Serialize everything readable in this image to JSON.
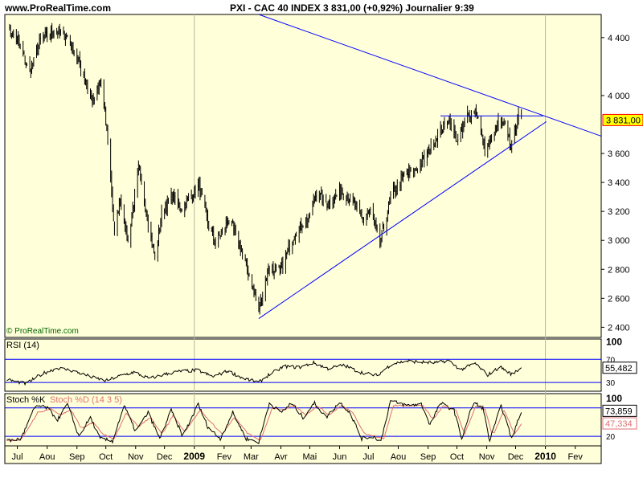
{
  "header": {
    "site": "www.ProRealTime.com",
    "title": "PXI - CAC 40 INDEX    3 831,00 (+0,92%)    Journalier  9:39"
  },
  "watermark": "© ProRealTime.com",
  "colors": {
    "panel_bg": "#ffffd9",
    "candle": "#000000",
    "trendline": "#0000ff",
    "rsi_line": "#000000",
    "stoch_k": "#000000",
    "stoch_d": "#e07070",
    "grid": "#b8b8a0",
    "price_tag_bg": "#ffff00",
    "price_tag_border": "#ff0000"
  },
  "chart_data": [
    {
      "type": "candlestick",
      "name": "CAC 40 INDEX",
      "interval": "Journalier",
      "last_price_label": "3 831,00",
      "yticks": [
        "4 400",
        "4 000",
        "3 600",
        "3 400",
        "3 200",
        "3 000",
        "2 800",
        "2 600",
        "2 400"
      ],
      "ytick_values": [
        4400,
        4000,
        3600,
        3400,
        3200,
        3000,
        2800,
        2600,
        2400
      ],
      "ylim": [
        2330,
        4560
      ],
      "x_months": [
        "Jul",
        "Aou",
        "Sep",
        "Oct",
        "Nov",
        "Dec",
        "2009",
        "Fev",
        "Mar",
        "Avr",
        "Mai",
        "Jun",
        "Jul",
        "Aou",
        "Sep",
        "Oct",
        "Nov",
        "Dec",
        "2010",
        "Fev"
      ],
      "x_month_starts": [
        "2008-07-01",
        "2008-08-01",
        "2008-09-01",
        "2008-10-01",
        "2008-11-01",
        "2008-12-01",
        "2009-01-01",
        "2009-02-01",
        "2009-03-01",
        "2009-04-01",
        "2009-05-01",
        "2009-06-01",
        "2009-07-01",
        "2009-08-01",
        "2009-09-01",
        "2009-10-01",
        "2009-11-01",
        "2009-12-01",
        "2010-01-01",
        "2010-02-01"
      ],
      "xlim": [
        "2008-06-18",
        "2010-02-28"
      ],
      "price_path": [
        [
          "2008-06-20",
          4480
        ],
        [
          "2008-07-03",
          4360
        ],
        [
          "2008-07-14",
          4150
        ],
        [
          "2008-07-25",
          4380
        ],
        [
          "2008-08-08",
          4450
        ],
        [
          "2008-08-22",
          4410
        ],
        [
          "2008-09-05",
          4200
        ],
        [
          "2008-09-18",
          3950
        ],
        [
          "2008-09-26",
          4100
        ],
        [
          "2008-10-03",
          3700
        ],
        [
          "2008-10-10",
          3050
        ],
        [
          "2008-10-16",
          3300
        ],
        [
          "2008-10-24",
          2980
        ],
        [
          "2008-11-04",
          3500
        ],
        [
          "2008-11-12",
          3200
        ],
        [
          "2008-11-21",
          2880
        ],
        [
          "2008-11-28",
          3180
        ],
        [
          "2008-12-08",
          3300
        ],
        [
          "2008-12-19",
          3220
        ],
        [
          "2009-01-06",
          3380
        ],
        [
          "2009-01-16",
          3100
        ],
        [
          "2009-01-23",
          2980
        ],
        [
          "2009-02-06",
          3150
        ],
        [
          "2009-02-18",
          2950
        ],
        [
          "2009-03-02",
          2700
        ],
        [
          "2009-03-09",
          2510
        ],
        [
          "2009-03-19",
          2820
        ],
        [
          "2009-03-31",
          2780
        ],
        [
          "2009-04-15",
          3050
        ],
        [
          "2009-04-30",
          3150
        ],
        [
          "2009-05-08",
          3330
        ],
        [
          "2009-05-20",
          3250
        ],
        [
          "2009-06-03",
          3350
        ],
        [
          "2009-06-17",
          3240
        ],
        [
          "2009-06-25",
          3150
        ],
        [
          "2009-07-03",
          3200
        ],
        [
          "2009-07-13",
          2980
        ],
        [
          "2009-07-24",
          3300
        ],
        [
          "2009-08-07",
          3450
        ],
        [
          "2009-08-20",
          3490
        ],
        [
          "2009-08-28",
          3560
        ],
        [
          "2009-09-08",
          3700
        ],
        [
          "2009-09-22",
          3830
        ],
        [
          "2009-10-02",
          3680
        ],
        [
          "2009-10-12",
          3870
        ],
        [
          "2009-10-21",
          3900
        ],
        [
          "2009-10-30",
          3620
        ],
        [
          "2009-11-05",
          3680
        ],
        [
          "2009-11-12",
          3800
        ],
        [
          "2009-11-20",
          3790
        ],
        [
          "2009-11-27",
          3650
        ],
        [
          "2009-12-03",
          3860
        ],
        [
          "2009-12-07",
          3831
        ]
      ],
      "trendlines": [
        {
          "name": "resistance",
          "from": [
            "2009-03-09",
            4560
          ],
          "to": [
            "2010-02-28",
            3720
          ]
        },
        {
          "name": "support",
          "from": [
            "2009-03-09",
            2460
          ],
          "to": [
            "2010-01-02",
            3820
          ]
        },
        {
          "name": "horizontal",
          "from": [
            "2009-09-14",
            3860
          ],
          "to": [
            "2009-12-30",
            3860
          ]
        }
      ]
    },
    {
      "type": "line",
      "name": "RSI (14)",
      "label": "RSI (14)",
      "yticks": [
        "100",
        "70",
        "30"
      ],
      "ytick_values": [
        100,
        70,
        30
      ],
      "levels": [
        70,
        30
      ],
      "ylim": [
        15,
        105
      ],
      "last_value_label": "55,482",
      "path": [
        [
          "2008-06-20",
          35
        ],
        [
          "2008-07-10",
          28
        ],
        [
          "2008-07-28",
          46
        ],
        [
          "2008-08-12",
          55
        ],
        [
          "2008-08-28",
          50
        ],
        [
          "2008-09-15",
          40
        ],
        [
          "2008-10-01",
          33
        ],
        [
          "2008-10-15",
          41
        ],
        [
          "2008-10-30",
          48
        ],
        [
          "2008-11-15",
          37
        ],
        [
          "2008-12-01",
          44
        ],
        [
          "2008-12-15",
          49
        ],
        [
          "2009-01-05",
          51
        ],
        [
          "2009-01-20",
          40
        ],
        [
          "2009-02-05",
          50
        ],
        [
          "2009-02-20",
          38
        ],
        [
          "2009-03-09",
          30
        ],
        [
          "2009-03-20",
          44
        ],
        [
          "2009-04-05",
          58
        ],
        [
          "2009-04-20",
          56
        ],
        [
          "2009-05-05",
          64
        ],
        [
          "2009-05-20",
          54
        ],
        [
          "2009-06-05",
          60
        ],
        [
          "2009-06-22",
          48
        ],
        [
          "2009-07-10",
          42
        ],
        [
          "2009-07-25",
          62
        ],
        [
          "2009-08-10",
          67
        ],
        [
          "2009-08-25",
          65
        ],
        [
          "2009-09-10",
          64
        ],
        [
          "2009-09-22",
          68
        ],
        [
          "2009-10-05",
          52
        ],
        [
          "2009-10-20",
          63
        ],
        [
          "2009-11-02",
          43
        ],
        [
          "2009-11-15",
          57
        ],
        [
          "2009-11-27",
          44
        ],
        [
          "2009-12-07",
          55.482
        ]
      ]
    },
    {
      "type": "line",
      "name": "Stochastic",
      "label_k": "Stoch %K",
      "label_d": "Stoch %D (14 3 5)",
      "yticks": [
        "100",
        "20"
      ],
      "ytick_values": [
        100,
        20
      ],
      "levels": [
        80,
        20
      ],
      "ylim": [
        0,
        110
      ],
      "last_k_label": "73,859",
      "last_d_label": "47,334",
      "k_path": [
        [
          "2008-06-20",
          10
        ],
        [
          "2008-07-05",
          15
        ],
        [
          "2008-07-20",
          85
        ],
        [
          "2008-08-01",
          80
        ],
        [
          "2008-08-12",
          55
        ],
        [
          "2008-08-22",
          88
        ],
        [
          "2008-09-03",
          20
        ],
        [
          "2008-09-15",
          60
        ],
        [
          "2008-09-25",
          15
        ],
        [
          "2008-10-08",
          10
        ],
        [
          "2008-10-20",
          85
        ],
        [
          "2008-11-01",
          30
        ],
        [
          "2008-11-14",
          70
        ],
        [
          "2008-11-26",
          15
        ],
        [
          "2008-12-08",
          75
        ],
        [
          "2008-12-20",
          20
        ],
        [
          "2009-01-05",
          88
        ],
        [
          "2009-01-15",
          40
        ],
        [
          "2009-01-28",
          15
        ],
        [
          "2009-02-10",
          70
        ],
        [
          "2009-02-24",
          15
        ],
        [
          "2009-03-09",
          8
        ],
        [
          "2009-03-20",
          90
        ],
        [
          "2009-04-01",
          70
        ],
        [
          "2009-04-12",
          90
        ],
        [
          "2009-04-24",
          60
        ],
        [
          "2009-05-06",
          90
        ],
        [
          "2009-05-18",
          60
        ],
        [
          "2009-06-01",
          92
        ],
        [
          "2009-06-12",
          70
        ],
        [
          "2009-06-24",
          15
        ],
        [
          "2009-07-06",
          20
        ],
        [
          "2009-07-14",
          10
        ],
        [
          "2009-07-24",
          95
        ],
        [
          "2009-08-10",
          85
        ],
        [
          "2009-08-25",
          88
        ],
        [
          "2009-09-03",
          45
        ],
        [
          "2009-09-14",
          90
        ],
        [
          "2009-09-28",
          75
        ],
        [
          "2009-10-06",
          15
        ],
        [
          "2009-10-18",
          92
        ],
        [
          "2009-10-28",
          80
        ],
        [
          "2009-11-04",
          10
        ],
        [
          "2009-11-16",
          85
        ],
        [
          "2009-11-27",
          15
        ],
        [
          "2009-12-07",
          73.859
        ]
      ],
      "d_path": [
        [
          "2008-06-20",
          12
        ],
        [
          "2008-07-05",
          12
        ],
        [
          "2008-07-22",
          70
        ],
        [
          "2008-08-05",
          78
        ],
        [
          "2008-08-15",
          65
        ],
        [
          "2008-08-26",
          75
        ],
        [
          "2008-09-06",
          35
        ],
        [
          "2008-09-18",
          50
        ],
        [
          "2008-09-28",
          25
        ],
        [
          "2008-10-10",
          15
        ],
        [
          "2008-10-22",
          70
        ],
        [
          "2008-11-04",
          40
        ],
        [
          "2008-11-16",
          60
        ],
        [
          "2008-11-29",
          25
        ],
        [
          "2008-12-10",
          65
        ],
        [
          "2008-12-22",
          30
        ],
        [
          "2009-01-07",
          75
        ],
        [
          "2009-01-18",
          50
        ],
        [
          "2009-01-30",
          25
        ],
        [
          "2009-02-12",
          60
        ],
        [
          "2009-02-26",
          25
        ],
        [
          "2009-03-11",
          12
        ],
        [
          "2009-03-23",
          80
        ],
        [
          "2009-04-04",
          75
        ],
        [
          "2009-04-15",
          85
        ],
        [
          "2009-04-27",
          65
        ],
        [
          "2009-05-09",
          85
        ],
        [
          "2009-05-21",
          65
        ],
        [
          "2009-06-03",
          85
        ],
        [
          "2009-06-15",
          70
        ],
        [
          "2009-06-27",
          25
        ],
        [
          "2009-07-08",
          20
        ],
        [
          "2009-07-17",
          15
        ],
        [
          "2009-07-27",
          85
        ],
        [
          "2009-08-12",
          85
        ],
        [
          "2009-08-27",
          85
        ],
        [
          "2009-09-06",
          55
        ],
        [
          "2009-09-17",
          85
        ],
        [
          "2009-09-30",
          75
        ],
        [
          "2009-10-09",
          25
        ],
        [
          "2009-10-21",
          85
        ],
        [
          "2009-10-31",
          75
        ],
        [
          "2009-11-07",
          20
        ],
        [
          "2009-11-19",
          75
        ],
        [
          "2009-11-30",
          25
        ],
        [
          "2009-12-07",
          47.334
        ]
      ]
    }
  ]
}
